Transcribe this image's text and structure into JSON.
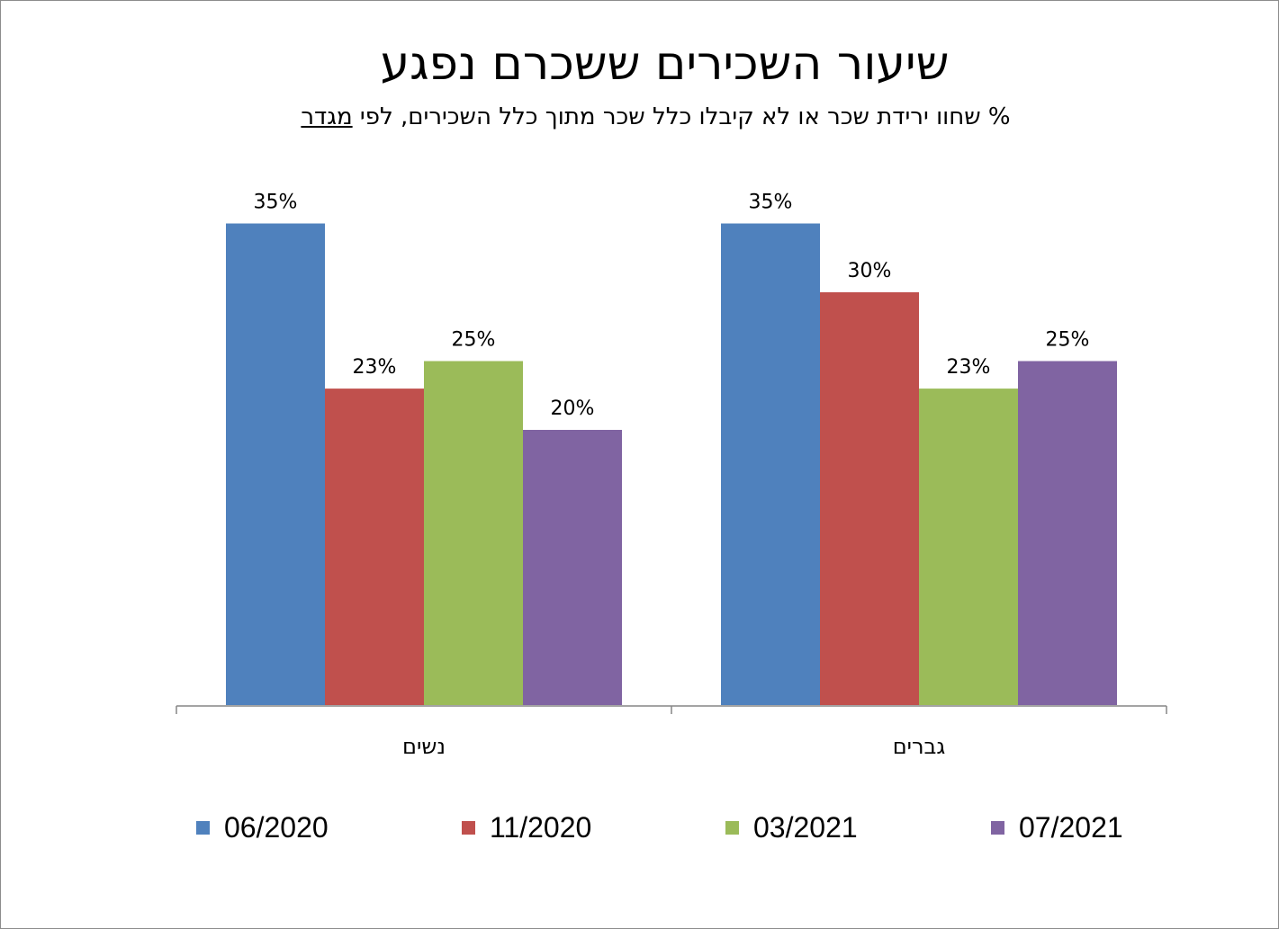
{
  "chart_data": {
    "type": "bar",
    "title": "שיעור השכירים ששכרם נפגע",
    "subtitle_before": "% שחוו ירידת שכר או לא קיבלו כלל שכר מתוך כלל השכירים, לפי ",
    "subtitle_underlined": "מגדר",
    "categories": [
      "נשים",
      "גברים"
    ],
    "series": [
      {
        "name": "06/2020",
        "color": "#4F81BD",
        "values": [
          35,
          35
        ]
      },
      {
        "name": "11/2020",
        "color": "#C0504D",
        "values": [
          23,
          30
        ]
      },
      {
        "name": "03/2021",
        "color": "#9BBB59",
        "values": [
          25,
          23
        ]
      },
      {
        "name": "07/2021",
        "color": "#8064A2",
        "values": [
          20,
          25
        ]
      }
    ],
    "data_labels": [
      [
        "35%",
        "23%",
        "25%",
        "20%"
      ],
      [
        "35%",
        "30%",
        "23%",
        "25%"
      ]
    ],
    "value_unit": "%",
    "ylim": [
      0,
      40
    ],
    "grid": false,
    "legend_position": "bottom"
  }
}
